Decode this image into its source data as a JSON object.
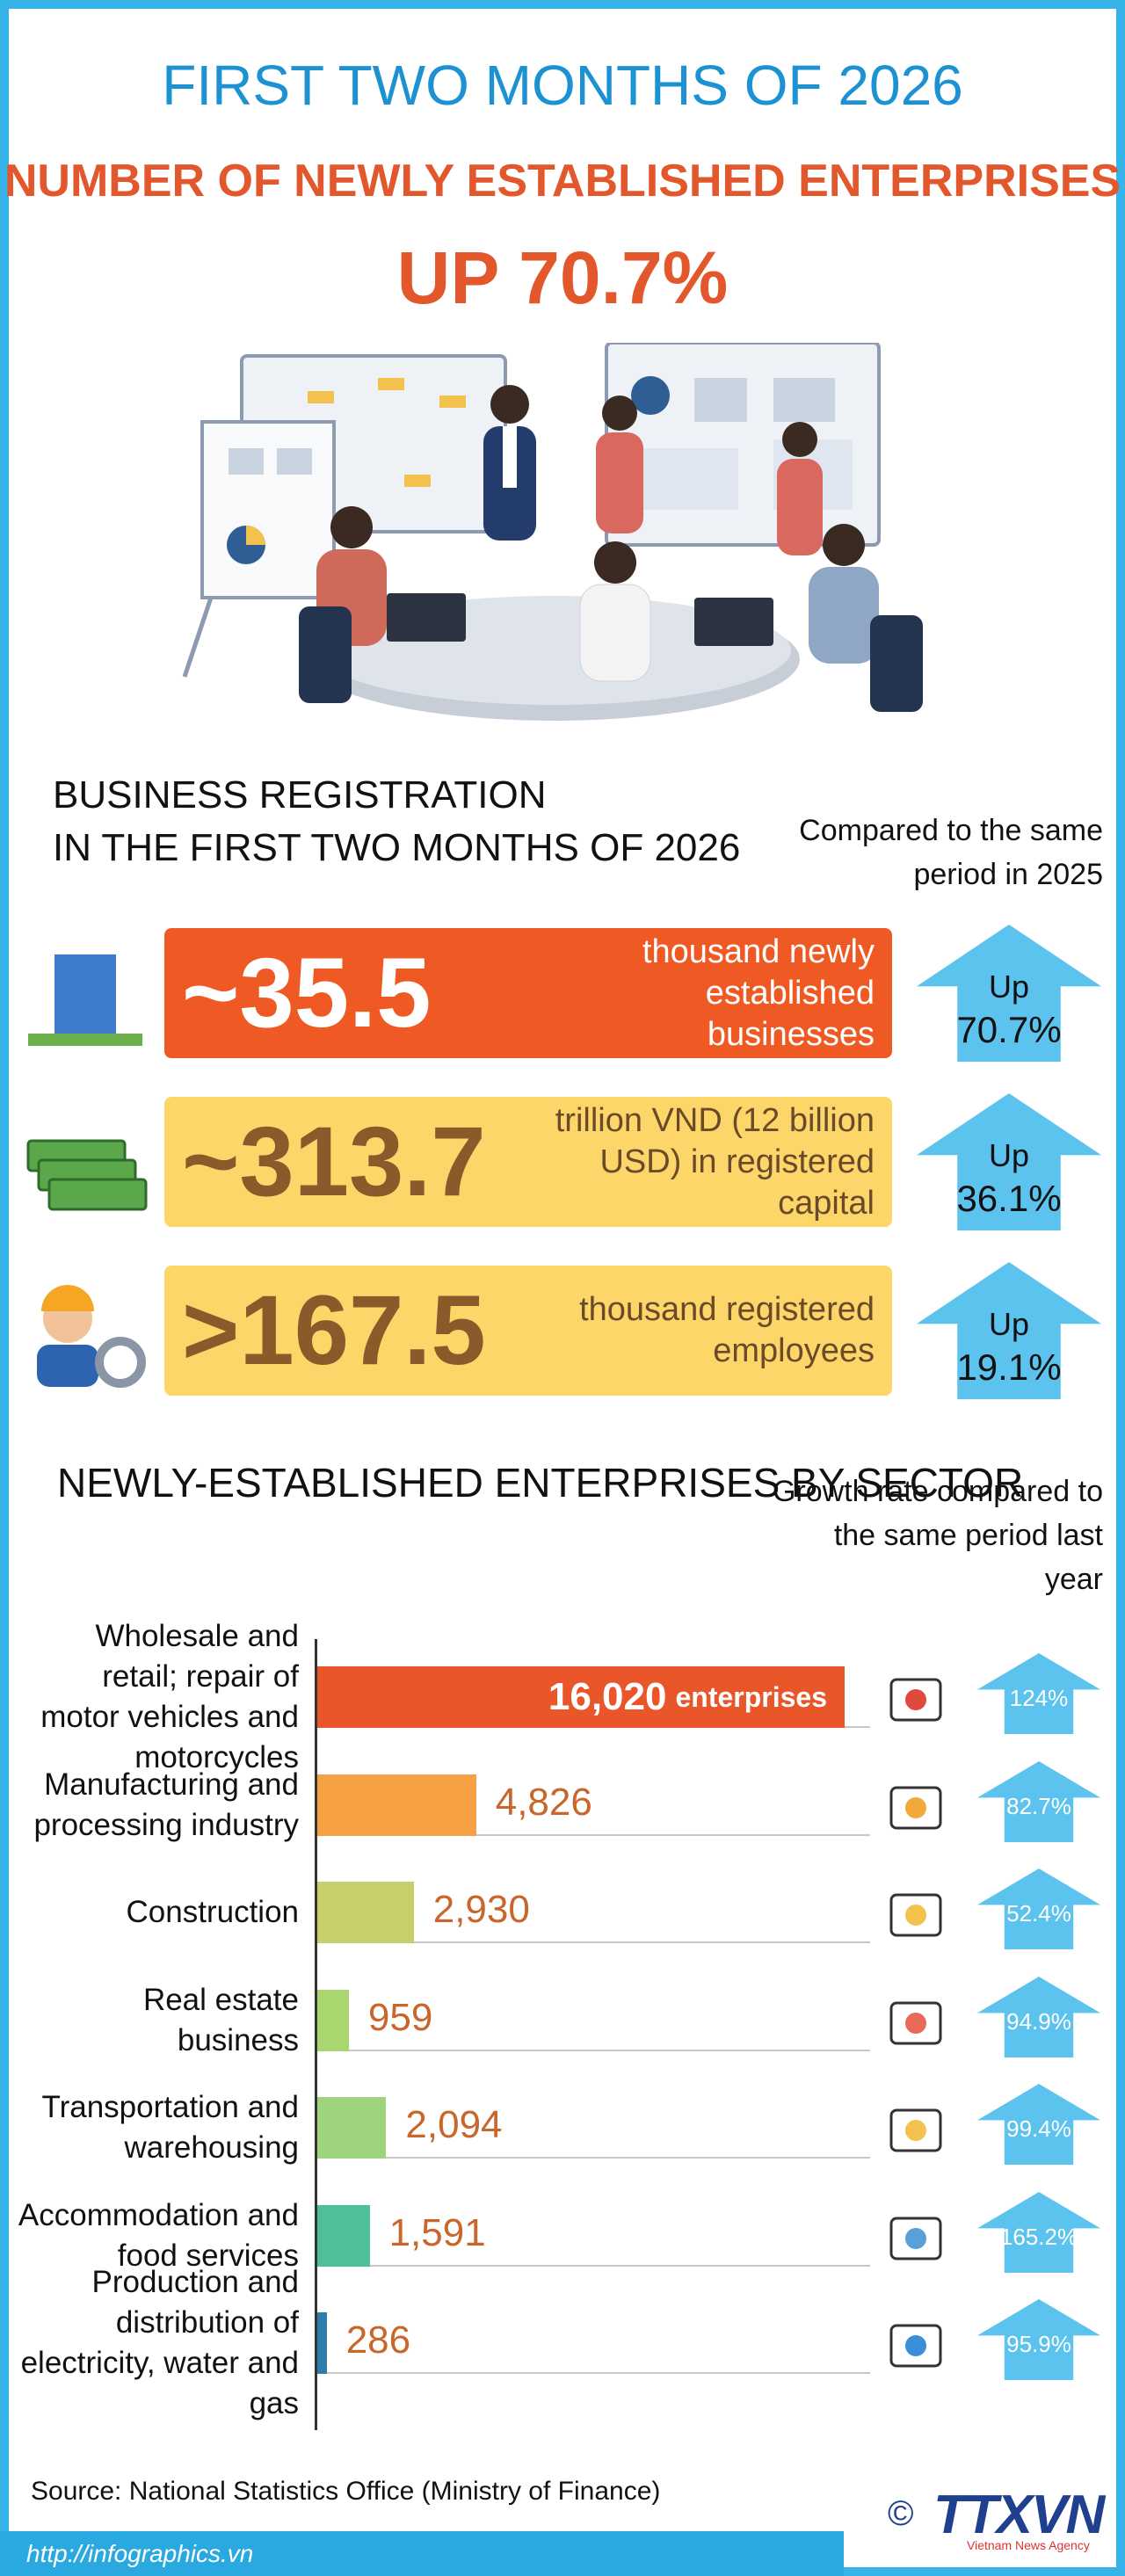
{
  "header": {
    "title": "FIRST TWO MONTHS OF 2026",
    "subtitle": "NUMBER OF NEWLY ESTABLISHED ENTERPRISES",
    "highlight": "UP 70.7%"
  },
  "registration": {
    "title_lines": [
      "BUSINESS REGISTRATION",
      "IN THE FIRST TWO MONTHS OF 2026"
    ],
    "comparison_note": "Compared to the same period in 2025",
    "items": [
      {
        "value": "~35.5",
        "description": "thousand newly established businesses",
        "change_label": "Up",
        "change": "70.7%"
      },
      {
        "value": "~313.7",
        "description": "trillion VND (12 billion USD) in registered capital",
        "change_label": "Up",
        "change": "36.1%"
      },
      {
        "value": ">167.5",
        "description": "thousand registered employees",
        "change_label": "Up",
        "change": "19.1%"
      }
    ]
  },
  "chart_data": {
    "type": "bar",
    "orientation": "horizontal",
    "title": "NEWLY-ESTABLISHED ENTERPRISES BY SECTOR",
    "note": "Growth rate compared to the same period last year",
    "unit_label": "enterprises",
    "categories": [
      "Wholesale and retail; repair of motor vehicles and motorcycles",
      "Manufacturing and processing industry",
      "Construction",
      "Real estate business",
      "Transportation and warehousing",
      "Accommodation and food services",
      "Production and distribution of electricity, water and gas"
    ],
    "values": [
      16020,
      4826,
      2930,
      959,
      2094,
      1591,
      286
    ],
    "value_labels": [
      "16,020",
      "4,826",
      "2,930",
      "959",
      "2,094",
      "1,591",
      "286"
    ],
    "colors": [
      "#e9562a",
      "#f5a043",
      "#c6cf6a",
      "#a9d66e",
      "#9dd47c",
      "#4dbf9b",
      "#2d7ea8"
    ],
    "growth_labels": [
      "124%",
      "82.7%",
      "52.4%",
      "94.9%",
      "99.4%",
      "165.2%",
      "95.9%"
    ]
  },
  "footer": {
    "source": "Source: National Statistics Office (Ministry of Finance)",
    "url": "http://infographics.vn",
    "copyright": "©",
    "logo": "TTXVN",
    "logo_caption": "Vietnam News Agency"
  }
}
